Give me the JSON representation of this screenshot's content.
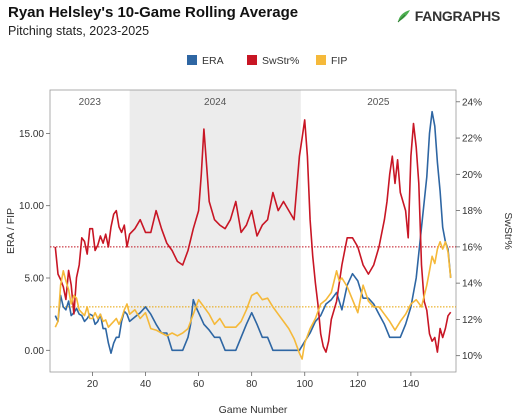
{
  "header": {
    "title": "Ryan Helsley's 10-Game Rolling Average",
    "subtitle": "Pitching stats, 2023-2025",
    "logo": "FANGRAPHS",
    "logo_icon": "fangraphs-leaf-icon"
  },
  "chart_data": {
    "type": "line",
    "xlabel": "Game Number",
    "ylabel_left": "ERA / FIP",
    "ylabel_right": "SwStr%",
    "x_range": [
      4,
      157
    ],
    "y_left_range": [
      -1.5,
      18.0
    ],
    "y_right_range": [
      0.091,
      0.2465
    ],
    "x_ticks": [
      20,
      40,
      60,
      80,
      100,
      120,
      140
    ],
    "y_left_ticks": [
      {
        "value": 0,
        "label": "0.00"
      },
      {
        "value": 5,
        "label": "5.00"
      },
      {
        "value": 10,
        "label": "10.00"
      },
      {
        "value": 15,
        "label": "15.00"
      }
    ],
    "y_right_ticks": [
      {
        "value": 0.1,
        "label": "10%"
      },
      {
        "value": 0.12,
        "label": "12%"
      },
      {
        "value": 0.14,
        "label": "14%"
      },
      {
        "value": 0.16,
        "label": "16%"
      },
      {
        "value": 0.18,
        "label": "18%"
      },
      {
        "value": 0.2,
        "label": "20%"
      },
      {
        "value": 0.22,
        "label": "22%"
      },
      {
        "value": 0.24,
        "label": "24%"
      }
    ],
    "seasons": [
      {
        "label": "2023",
        "start": 4,
        "end": 34,
        "shaded": false
      },
      {
        "label": "2024",
        "start": 34,
        "end": 98.5,
        "shaded": true
      },
      {
        "label": "2025",
        "start": 98.5,
        "end": 157,
        "shaded": false
      }
    ],
    "reference_lines": [
      {
        "axis": "right",
        "value": 0.16,
        "color": "#c0111f"
      },
      {
        "axis": "left",
        "value": 3.0,
        "color": "#e8a200"
      }
    ],
    "legend": [
      {
        "name": "ERA",
        "color": "#2e66a3"
      },
      {
        "name": "SwStr%",
        "color": "#c81625"
      },
      {
        "name": "FIP",
        "color": "#f5b93a"
      }
    ],
    "series": [
      {
        "name": "ERA",
        "axis": "left",
        "color": "#2e66a3",
        "points": [
          [
            6,
            2.4
          ],
          [
            7,
            2.0
          ],
          [
            8,
            3.8
          ],
          [
            9,
            3.0
          ],
          [
            10,
            2.8
          ],
          [
            11,
            3.4
          ],
          [
            12,
            2.4
          ],
          [
            13,
            2.6
          ],
          [
            14,
            2.9
          ],
          [
            15,
            2.5
          ],
          [
            16,
            2.4
          ],
          [
            17,
            2.0
          ],
          [
            18,
            2.2
          ],
          [
            19,
            2.5
          ],
          [
            20,
            2.4
          ],
          [
            21,
            1.8
          ],
          [
            22,
            2.0
          ],
          [
            23,
            2.5
          ],
          [
            24,
            1.5
          ],
          [
            25,
            1.5
          ],
          [
            26,
            0.5
          ],
          [
            27,
            -0.2
          ],
          [
            28,
            0.5
          ],
          [
            29,
            0.9
          ],
          [
            30,
            0.9
          ],
          [
            31,
            2.0
          ],
          [
            32,
            2.7
          ],
          [
            33,
            2.5
          ],
          [
            34,
            2.0
          ],
          [
            36,
            2.3
          ],
          [
            38,
            2.6
          ],
          [
            40,
            3.0
          ],
          [
            42,
            2.5
          ],
          [
            44,
            1.8
          ],
          [
            46,
            1.2
          ],
          [
            48,
            1.2
          ],
          [
            50,
            0.0
          ],
          [
            52,
            0.0
          ],
          [
            54,
            0.0
          ],
          [
            56,
            0.9
          ],
          [
            57,
            1.8
          ],
          [
            58,
            3.5
          ],
          [
            59,
            3.0
          ],
          [
            60,
            2.6
          ],
          [
            62,
            1.8
          ],
          [
            64,
            1.4
          ],
          [
            66,
            0.9
          ],
          [
            68,
            0.9
          ],
          [
            70,
            0.0
          ],
          [
            72,
            0.0
          ],
          [
            74,
            0.0
          ],
          [
            76,
            0.9
          ],
          [
            78,
            1.8
          ],
          [
            80,
            2.6
          ],
          [
            82,
            1.8
          ],
          [
            84,
            0.9
          ],
          [
            86,
            0.9
          ],
          [
            88,
            0.0
          ],
          [
            90,
            0.0
          ],
          [
            92,
            0.0
          ],
          [
            94,
            0.0
          ],
          [
            96,
            0.0
          ],
          [
            98,
            0.0
          ],
          [
            100,
            0.6
          ],
          [
            102,
            1.2
          ],
          [
            104,
            2.0
          ],
          [
            106,
            2.4
          ],
          [
            108,
            3.2
          ],
          [
            110,
            3.5
          ],
          [
            112,
            4.0
          ],
          [
            114,
            2.8
          ],
          [
            116,
            4.5
          ],
          [
            118,
            5.3
          ],
          [
            120,
            4.8
          ],
          [
            122,
            3.6
          ],
          [
            124,
            3.6
          ],
          [
            126,
            3.2
          ],
          [
            128,
            2.5
          ],
          [
            130,
            1.8
          ],
          [
            132,
            0.9
          ],
          [
            134,
            0.9
          ],
          [
            136,
            0.9
          ],
          [
            138,
            1.8
          ],
          [
            140,
            3.0
          ],
          [
            142,
            5.0
          ],
          [
            144,
            8.5
          ],
          [
            146,
            12.0
          ],
          [
            147,
            15.0
          ],
          [
            148,
            16.5
          ],
          [
            149,
            15.5
          ],
          [
            150,
            13.0
          ],
          [
            151,
            11.0
          ],
          [
            152,
            8.5
          ],
          [
            153,
            7.5
          ],
          [
            154,
            7.0
          ],
          [
            155,
            5.0
          ]
        ]
      },
      {
        "name": "SwStr%",
        "axis": "right",
        "color": "#c81625",
        "points": [
          [
            6,
            0.16
          ],
          [
            7,
            0.145
          ],
          [
            8,
            0.142
          ],
          [
            9,
            0.138
          ],
          [
            10,
            0.131
          ],
          [
            11,
            0.147
          ],
          [
            12,
            0.139
          ],
          [
            13,
            0.123
          ],
          [
            14,
            0.143
          ],
          [
            15,
            0.15
          ],
          [
            16,
            0.165
          ],
          [
            17,
            0.163
          ],
          [
            18,
            0.156
          ],
          [
            19,
            0.17
          ],
          [
            20,
            0.17
          ],
          [
            21,
            0.158
          ],
          [
            22,
            0.161
          ],
          [
            23,
            0.166
          ],
          [
            24,
            0.162
          ],
          [
            25,
            0.167
          ],
          [
            26,
            0.16
          ],
          [
            27,
            0.171
          ],
          [
            28,
            0.178
          ],
          [
            29,
            0.18
          ],
          [
            30,
            0.171
          ],
          [
            31,
            0.168
          ],
          [
            32,
            0.172
          ],
          [
            33,
            0.16
          ],
          [
            34,
            0.167
          ],
          [
            36,
            0.17
          ],
          [
            38,
            0.175
          ],
          [
            40,
            0.168
          ],
          [
            42,
            0.168
          ],
          [
            44,
            0.18
          ],
          [
            46,
            0.17
          ],
          [
            48,
            0.162
          ],
          [
            50,
            0.158
          ],
          [
            52,
            0.152
          ],
          [
            54,
            0.15
          ],
          [
            56,
            0.158
          ],
          [
            58,
            0.17
          ],
          [
            60,
            0.18
          ],
          [
            61,
            0.2
          ],
          [
            62,
            0.225
          ],
          [
            63,
            0.205
          ],
          [
            64,
            0.185
          ],
          [
            66,
            0.175
          ],
          [
            68,
            0.172
          ],
          [
            70,
            0.17
          ],
          [
            72,
            0.175
          ],
          [
            74,
            0.185
          ],
          [
            76,
            0.168
          ],
          [
            78,
            0.172
          ],
          [
            80,
            0.18
          ],
          [
            82,
            0.166
          ],
          [
            84,
            0.172
          ],
          [
            86,
            0.175
          ],
          [
            88,
            0.19
          ],
          [
            90,
            0.18
          ],
          [
            92,
            0.185
          ],
          [
            94,
            0.18
          ],
          [
            96,
            0.175
          ],
          [
            98,
            0.21
          ],
          [
            99,
            0.22
          ],
          [
            100,
            0.23
          ],
          [
            101,
            0.21
          ],
          [
            102,
            0.175
          ],
          [
            103,
            0.155
          ],
          [
            104,
            0.14
          ],
          [
            105,
            0.128
          ],
          [
            106,
            0.112
          ],
          [
            107,
            0.105
          ],
          [
            108,
            0.102
          ],
          [
            109,
            0.108
          ],
          [
            110,
            0.12
          ],
          [
            112,
            0.13
          ],
          [
            114,
            0.15
          ],
          [
            116,
            0.165
          ],
          [
            118,
            0.165
          ],
          [
            120,
            0.16
          ],
          [
            122,
            0.15
          ],
          [
            124,
            0.145
          ],
          [
            126,
            0.15
          ],
          [
            128,
            0.16
          ],
          [
            130,
            0.175
          ],
          [
            131,
            0.185
          ],
          [
            132,
            0.2
          ],
          [
            133,
            0.21
          ],
          [
            134,
            0.195
          ],
          [
            135,
            0.208
          ],
          [
            136,
            0.19
          ],
          [
            138,
            0.18
          ],
          [
            139,
            0.165
          ],
          [
            140,
            0.21
          ],
          [
            141,
            0.228
          ],
          [
            142,
            0.215
          ],
          [
            143,
            0.195
          ],
          [
            144,
            0.15
          ],
          [
            145,
            0.13
          ],
          [
            146,
            0.125
          ],
          [
            147,
            0.112
          ],
          [
            148,
            0.108
          ],
          [
            149,
            0.11
          ],
          [
            150,
            0.102
          ],
          [
            151,
            0.115
          ],
          [
            152,
            0.11
          ],
          [
            153,
            0.115
          ],
          [
            154,
            0.122
          ],
          [
            155,
            0.124
          ]
        ]
      },
      {
        "name": "FIP",
        "axis": "left",
        "color": "#f5b93a",
        "points": [
          [
            6,
            1.6
          ],
          [
            7,
            2.0
          ],
          [
            8,
            4.5
          ],
          [
            9,
            5.5
          ],
          [
            10,
            4.8
          ],
          [
            11,
            4.2
          ],
          [
            12,
            3.2
          ],
          [
            13,
            3.8
          ],
          [
            14,
            3.6
          ],
          [
            15,
            2.8
          ],
          [
            16,
            2.6
          ],
          [
            17,
            2.4
          ],
          [
            18,
            3.0
          ],
          [
            19,
            2.2
          ],
          [
            20,
            2.2
          ],
          [
            21,
            2.6
          ],
          [
            22,
            2.2
          ],
          [
            23,
            2.5
          ],
          [
            24,
            2.0
          ],
          [
            25,
            2.1
          ],
          [
            26,
            1.6
          ],
          [
            27,
            1.8
          ],
          [
            28,
            2.0
          ],
          [
            29,
            2.2
          ],
          [
            30,
            1.8
          ],
          [
            31,
            2.2
          ],
          [
            32,
            2.8
          ],
          [
            33,
            3.2
          ],
          [
            34,
            2.5
          ],
          [
            36,
            2.8
          ],
          [
            38,
            2.2
          ],
          [
            40,
            2.6
          ],
          [
            42,
            1.5
          ],
          [
            44,
            1.4
          ],
          [
            46,
            1.2
          ],
          [
            48,
            1.0
          ],
          [
            50,
            1.2
          ],
          [
            52,
            1.0
          ],
          [
            54,
            1.2
          ],
          [
            56,
            1.5
          ],
          [
            58,
            2.5
          ],
          [
            60,
            3.5
          ],
          [
            62,
            3.0
          ],
          [
            64,
            2.5
          ],
          [
            66,
            1.8
          ],
          [
            68,
            2.2
          ],
          [
            70,
            1.6
          ],
          [
            72,
            1.6
          ],
          [
            74,
            1.6
          ],
          [
            76,
            2.0
          ],
          [
            78,
            2.8
          ],
          [
            80,
            3.8
          ],
          [
            82,
            4.0
          ],
          [
            84,
            3.5
          ],
          [
            86,
            3.6
          ],
          [
            88,
            3.0
          ],
          [
            90,
            2.5
          ],
          [
            92,
            2.0
          ],
          [
            94,
            1.5
          ],
          [
            96,
            0.8
          ],
          [
            98,
            -0.2
          ],
          [
            99,
            -0.6
          ],
          [
            100,
            0.5
          ],
          [
            102,
            1.5
          ],
          [
            104,
            2.2
          ],
          [
            106,
            3.2
          ],
          [
            108,
            3.5
          ],
          [
            110,
            4.0
          ],
          [
            112,
            5.5
          ],
          [
            113,
            4.8
          ],
          [
            114,
            5.0
          ],
          [
            116,
            4.4
          ],
          [
            118,
            3.5
          ],
          [
            120,
            2.6
          ],
          [
            122,
            4.5
          ],
          [
            124,
            3.4
          ],
          [
            126,
            3.0
          ],
          [
            128,
            3.0
          ],
          [
            130,
            2.5
          ],
          [
            132,
            2.0
          ],
          [
            134,
            1.4
          ],
          [
            136,
            2.0
          ],
          [
            138,
            2.5
          ],
          [
            140,
            3.2
          ],
          [
            142,
            3.5
          ],
          [
            144,
            3.0
          ],
          [
            146,
            4.5
          ],
          [
            147,
            5.5
          ],
          [
            148,
            6.5
          ],
          [
            149,
            6.0
          ],
          [
            150,
            7.0
          ],
          [
            151,
            7.5
          ],
          [
            152,
            7.0
          ],
          [
            153,
            7.5
          ],
          [
            154,
            6.8
          ],
          [
            155,
            5.0
          ]
        ]
      }
    ]
  }
}
